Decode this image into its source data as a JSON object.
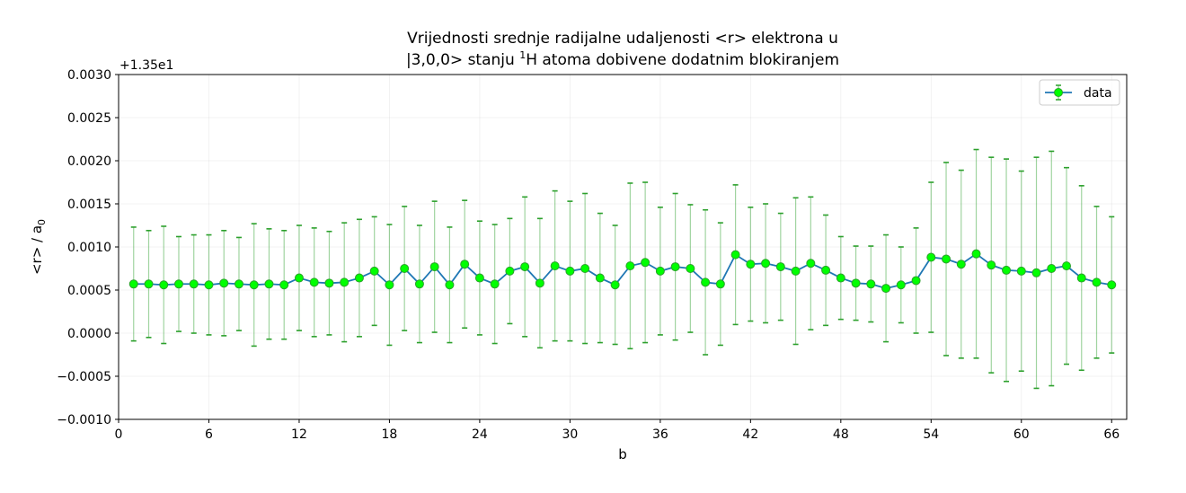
{
  "chart_data": {
    "type": "line",
    "title_line1": "Vrijednosti srednje radijalne udaljenosti <r> elektrona u",
    "title_line2_pre": "|3,0,0> stanju ",
    "title_line2_sup": "1",
    "title_line2_post": "H atoma dobivene dodatnim blokiranjem",
    "offset_label": "+1.35e1",
    "xlabel": "b",
    "ylabel_main": "<r> / a",
    "ylabel_sub": "0",
    "xlim": [
      0,
      67
    ],
    "ylim": [
      -0.001,
      0.003
    ],
    "xticks": [
      0,
      6,
      12,
      18,
      24,
      30,
      36,
      42,
      48,
      54,
      60,
      66
    ],
    "yticks": [
      -0.001,
      -0.0005,
      0.0,
      0.0005,
      0.001,
      0.0015,
      0.002,
      0.0025,
      0.003
    ],
    "ytick_labels": [
      "−0.0010",
      "−0.0005",
      "0.0000",
      "0.0005",
      "0.0010",
      "0.0015",
      "0.0020",
      "0.0025",
      "0.0030"
    ],
    "legend": {
      "label": "data",
      "position": "top-right"
    },
    "grid": true,
    "colors": {
      "line": "#1f77b4",
      "marker_face": "#00ff00",
      "marker_edge": "#2ca02c",
      "errorbar": "#2ca02c"
    },
    "series": [
      {
        "x": [
          1,
          2,
          3,
          4,
          5,
          6,
          7,
          8,
          9,
          10,
          11,
          12,
          13,
          14,
          15,
          16,
          17,
          18,
          19,
          20,
          21,
          22,
          23,
          24,
          25,
          26,
          27,
          28,
          29,
          30,
          31,
          32,
          33,
          34,
          35,
          36,
          37,
          38,
          39,
          40,
          41,
          42,
          43,
          44,
          45,
          46,
          47,
          48,
          49,
          50,
          51,
          52,
          53,
          54,
          55,
          56,
          57,
          58,
          59,
          60,
          61,
          62,
          63,
          64,
          65,
          66
        ],
        "y": [
          0.00057,
          0.00057,
          0.00056,
          0.00057,
          0.00057,
          0.00056,
          0.00058,
          0.00057,
          0.00056,
          0.00057,
          0.00056,
          0.00064,
          0.00059,
          0.00058,
          0.00059,
          0.00064,
          0.00072,
          0.00056,
          0.00075,
          0.00057,
          0.00077,
          0.00056,
          0.0008,
          0.00064,
          0.00057,
          0.00072,
          0.00077,
          0.00058,
          0.00078,
          0.00072,
          0.00075,
          0.00064,
          0.00056,
          0.00078,
          0.00082,
          0.00072,
          0.00077,
          0.00075,
          0.00059,
          0.00057,
          0.00091,
          0.0008,
          0.00081,
          0.00077,
          0.00072,
          0.00081,
          0.00073,
          0.00064,
          0.00058,
          0.00057,
          0.00052,
          0.00056,
          0.00061,
          0.00088,
          0.00086,
          0.0008,
          0.00092,
          0.00079,
          0.00073,
          0.00072,
          0.0007,
          0.00075,
          0.00078,
          0.00064,
          0.00059,
          0.00056
        ],
        "err": [
          0.00066,
          0.00062,
          0.00068,
          0.00055,
          0.00057,
          0.00058,
          0.00061,
          0.00054,
          0.00071,
          0.00064,
          0.00063,
          0.00061,
          0.00063,
          0.0006,
          0.00069,
          0.00068,
          0.00063,
          0.0007,
          0.00072,
          0.00068,
          0.00076,
          0.00067,
          0.00074,
          0.00066,
          0.00069,
          0.00061,
          0.00081,
          0.00075,
          0.00087,
          0.00081,
          0.00087,
          0.00075,
          0.00069,
          0.00096,
          0.00093,
          0.00074,
          0.00085,
          0.00074,
          0.00084,
          0.00071,
          0.00081,
          0.00066,
          0.00069,
          0.00062,
          0.00085,
          0.00077,
          0.00064,
          0.00048,
          0.00043,
          0.00044,
          0.00062,
          0.00044,
          0.00061,
          0.00087,
          0.00112,
          0.00109,
          0.00121,
          0.00125,
          0.00129,
          0.00116,
          0.00134,
          0.00136,
          0.00114,
          0.00107,
          0.00088,
          0.00079
        ]
      }
    ]
  }
}
